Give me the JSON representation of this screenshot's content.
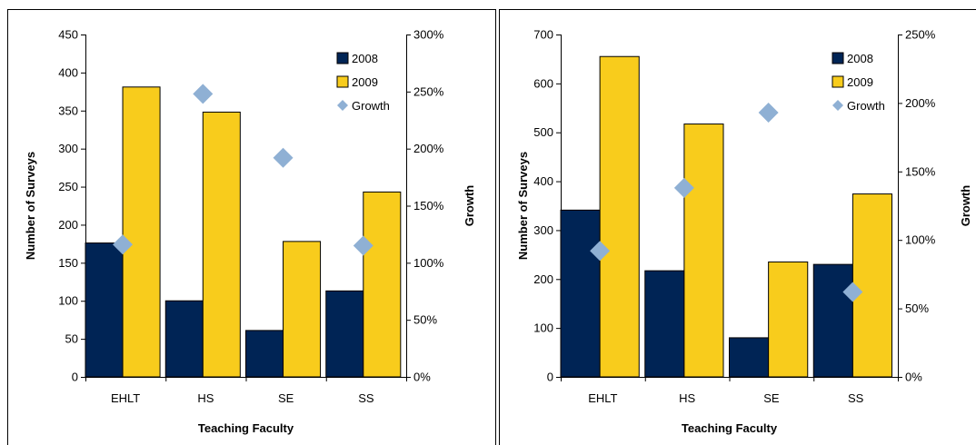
{
  "colors": {
    "s2008": "#002455",
    "s2009": "#F8CC1C",
    "growth": "#8FB0D4"
  },
  "chart_data": [
    {
      "type": "bar",
      "categories": [
        "EHLT",
        "HS",
        "SE",
        "SS"
      ],
      "series": [
        {
          "name": "2008",
          "kind": "bar",
          "axis": "left",
          "values": [
            176,
            100,
            61,
            113
          ]
        },
        {
          "name": "2009",
          "kind": "bar",
          "axis": "left",
          "values": [
            381,
            348,
            178,
            243
          ]
        },
        {
          "name": "Growth",
          "kind": "scatter",
          "axis": "right",
          "values": [
            116,
            248,
            192,
            115
          ]
        }
      ],
      "xlabel": "Teaching Faculty",
      "ylabel": "Number of Surveys",
      "y2label": "Growth",
      "ylim": [
        0,
        450
      ],
      "yticks": [
        "0",
        "50",
        "100",
        "150",
        "200",
        "250",
        "300",
        "350",
        "400",
        "450"
      ],
      "y2lim": [
        0,
        300
      ],
      "y2ticks": [
        "0%",
        "50%",
        "100%",
        "150%",
        "200%",
        "250%",
        "300%"
      ],
      "legend": "top-right"
    },
    {
      "type": "bar",
      "categories": [
        "EHLT",
        "HS",
        "SE",
        "SS"
      ],
      "series": [
        {
          "name": "2008",
          "kind": "bar",
          "axis": "left",
          "values": [
            341,
            217,
            80,
            230
          ]
        },
        {
          "name": "2009",
          "kind": "bar",
          "axis": "left",
          "values": [
            655,
            517,
            235,
            374
          ]
        },
        {
          "name": "Growth",
          "kind": "scatter",
          "axis": "right",
          "values": [
            92,
            138,
            193,
            62
          ]
        }
      ],
      "xlabel": "Teaching Faculty",
      "ylabel": "Number of Surveys",
      "y2label": "Growth",
      "ylim": [
        0,
        700
      ],
      "yticks": [
        "0",
        "100",
        "200",
        "300",
        "400",
        "500",
        "600",
        "700"
      ],
      "y2lim": [
        0,
        250
      ],
      "y2ticks": [
        "0%",
        "50%",
        "100%",
        "150%",
        "200%",
        "250%"
      ],
      "legend": "top-right"
    }
  ]
}
